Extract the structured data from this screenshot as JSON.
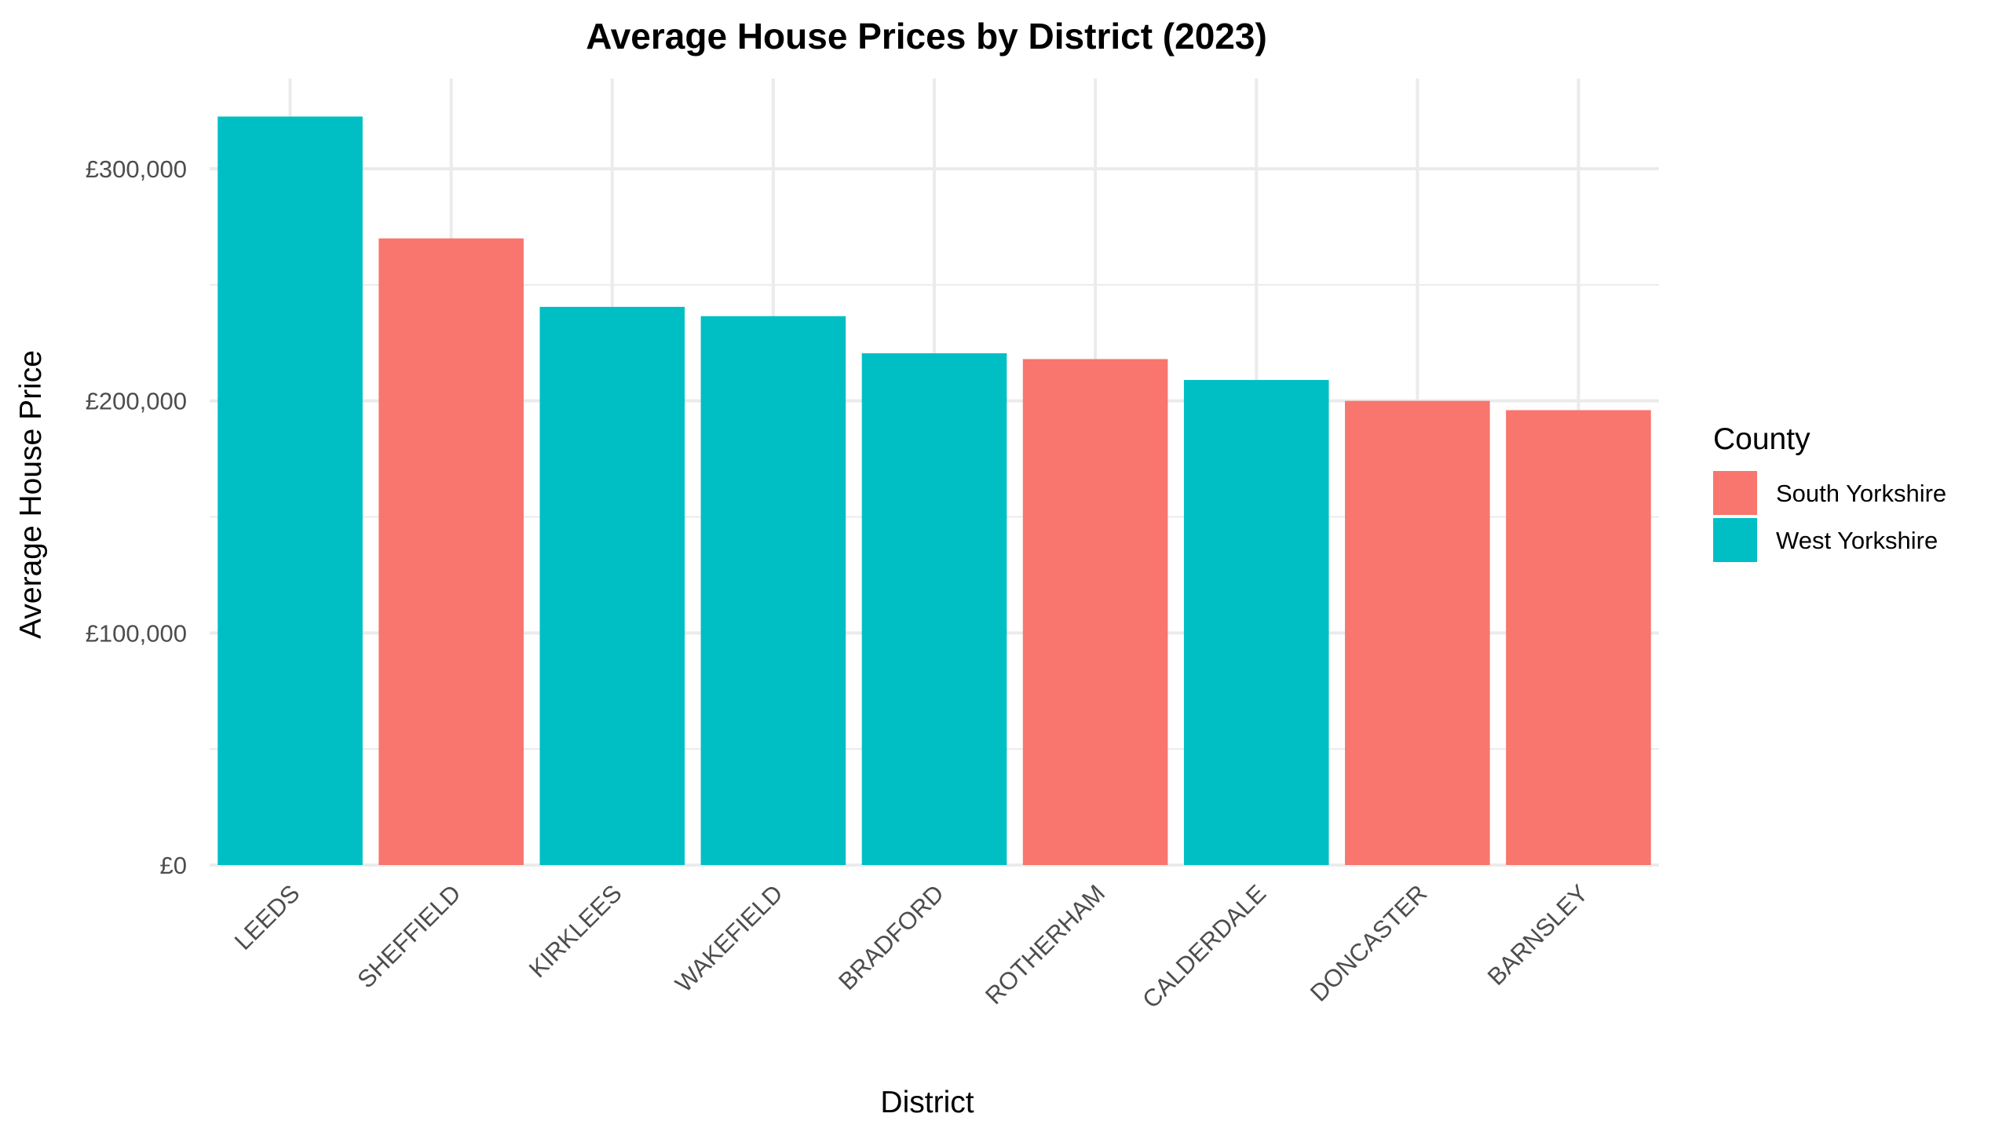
{
  "chart_data": {
    "type": "bar",
    "title": "Average House Prices by District (2023)",
    "xlabel": "District",
    "ylabel": "Average House Price",
    "categories": [
      "LEEDS",
      "SHEFFIELD",
      "KIRKLEES",
      "WAKEFIELD",
      "BRADFORD",
      "ROTHERHAM",
      "CALDERDALE",
      "DONCASTER",
      "BARNSLEY"
    ],
    "values": [
      322500,
      270000,
      240500,
      236500,
      220500,
      218000,
      209000,
      200000,
      196000
    ],
    "group": [
      "West Yorkshire",
      "South Yorkshire",
      "West Yorkshire",
      "West Yorkshire",
      "West Yorkshire",
      "South Yorkshire",
      "West Yorkshire",
      "South Yorkshire",
      "South Yorkshire"
    ],
    "ylim": [
      0,
      330000
    ],
    "yticks": [
      0,
      100000,
      200000,
      300000
    ],
    "ytick_labels": [
      "£0",
      "£100,000",
      "£200,000",
      "£300,000"
    ],
    "grid": true,
    "legend": {
      "title": "County",
      "placement": "right",
      "entries": [
        {
          "name": "South Yorkshire",
          "color": "#F8766D"
        },
        {
          "name": "West Yorkshire",
          "color": "#00BFC4"
        }
      ]
    },
    "colors": {
      "South Yorkshire": "#F8766D",
      "West Yorkshire": "#00BFC4",
      "grid": "#ebebeb",
      "background": "#ffffff"
    }
  }
}
